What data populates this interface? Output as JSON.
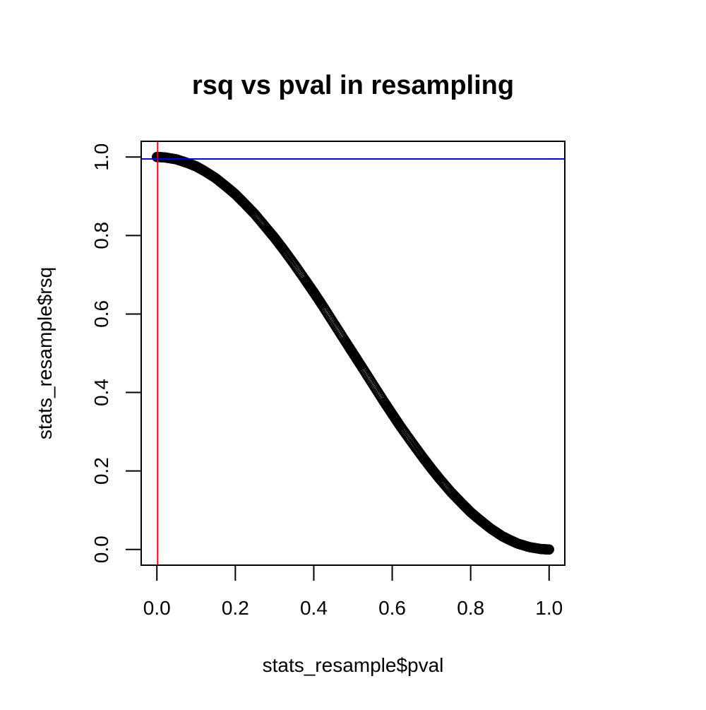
{
  "chart_data": {
    "type": "scatter",
    "title": "rsq vs pval in resampling",
    "xlabel": "stats_resample$pval",
    "ylabel": "stats_resample$rsq",
    "xlim": [
      -0.04,
      1.04
    ],
    "ylim": [
      -0.04,
      1.04
    ],
    "x_ticks": [
      "0.0",
      "0.2",
      "0.4",
      "0.6",
      "0.8",
      "1.0"
    ],
    "y_ticks": [
      "0.0",
      "0.2",
      "0.4",
      "0.6",
      "0.8",
      "1.0"
    ],
    "point_style": "open-circle",
    "point_color": "#000000",
    "series": [
      {
        "x": [
          0.0,
          0.02,
          0.05,
          0.08,
          0.1,
          0.12,
          0.15,
          0.18,
          0.2,
          0.22,
          0.25,
          0.28,
          0.3,
          0.32,
          0.35,
          0.38,
          0.4,
          0.42,
          0.45,
          0.48,
          0.5,
          0.52,
          0.55,
          0.58,
          0.6,
          0.62,
          0.65,
          0.68,
          0.7,
          0.72,
          0.75,
          0.78,
          0.8,
          0.82,
          0.85,
          0.88,
          0.9,
          0.92,
          0.95,
          0.98,
          1.0
        ],
        "y": [
          1.0,
          0.999,
          0.994,
          0.984,
          0.976,
          0.965,
          0.946,
          0.922,
          0.905,
          0.885,
          0.854,
          0.818,
          0.794,
          0.768,
          0.727,
          0.684,
          0.655,
          0.625,
          0.578,
          0.531,
          0.5,
          0.469,
          0.422,
          0.375,
          0.345,
          0.315,
          0.273,
          0.232,
          0.206,
          0.181,
          0.146,
          0.115,
          0.095,
          0.078,
          0.054,
          0.034,
          0.024,
          0.015,
          0.006,
          0.001,
          0.0
        ]
      }
    ],
    "reference_lines": [
      {
        "orientation": "vertical",
        "value": 0.002,
        "color": "#ff0000"
      },
      {
        "orientation": "horizontal",
        "value": 0.995,
        "color": "#0000ff"
      }
    ]
  }
}
